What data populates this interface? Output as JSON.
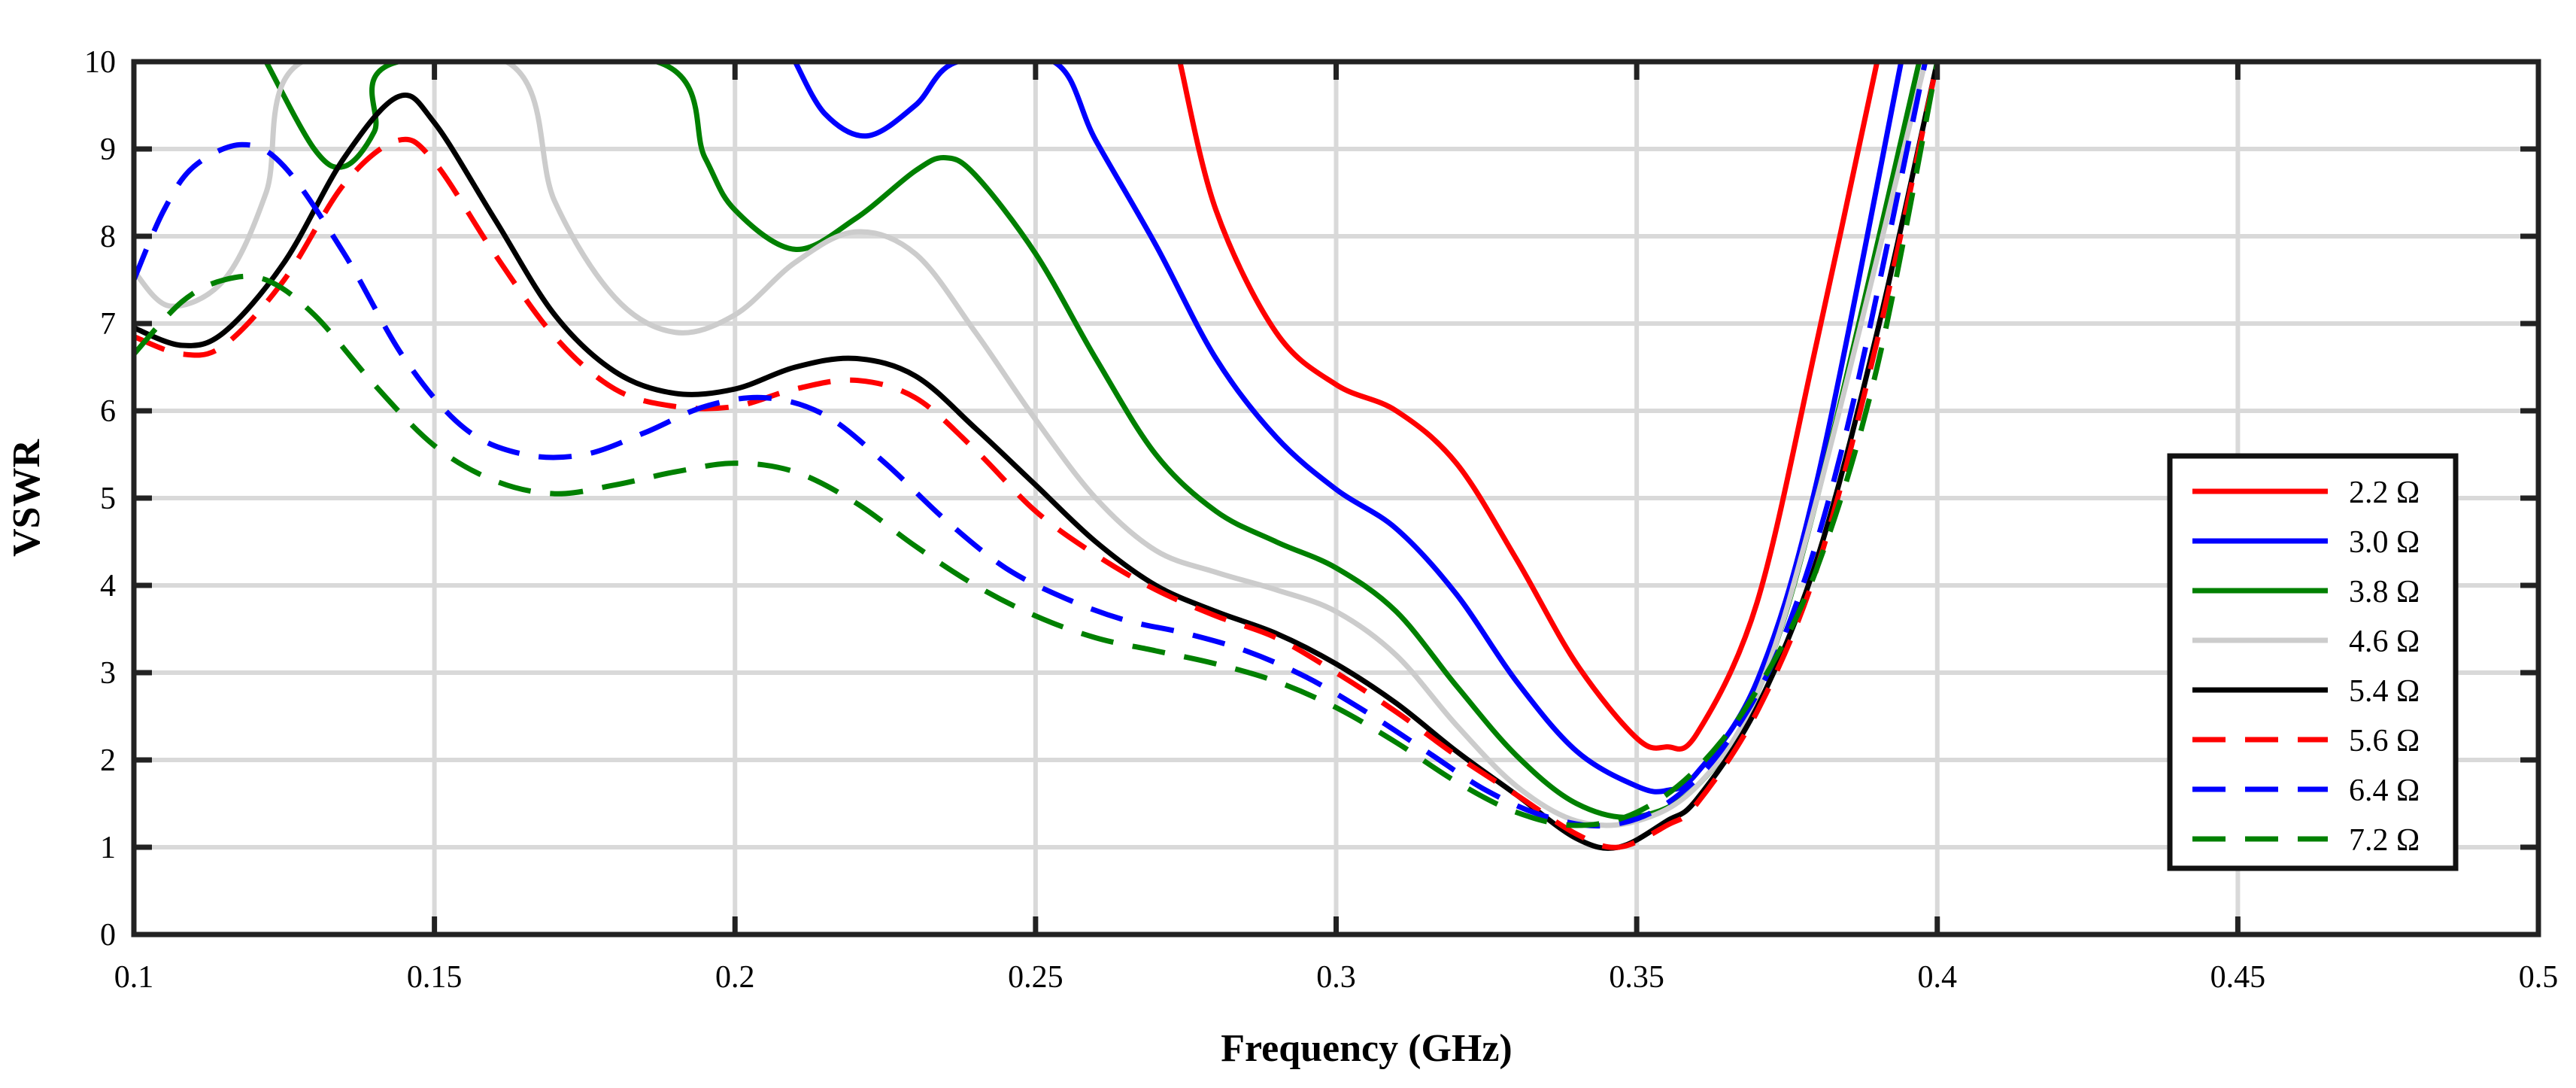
{
  "chart_data": {
    "type": "line",
    "title": "",
    "xlabel": "Frequency (GHz)",
    "ylabel": "VSWR",
    "xlim": [
      0.1,
      0.5
    ],
    "ylim": [
      0,
      10
    ],
    "xticks": [
      0.1,
      0.15,
      0.2,
      0.25,
      0.3,
      0.35,
      0.4,
      0.45,
      0.5
    ],
    "xtick_labels": [
      "0.1",
      "0.15",
      "0.2",
      "0.25",
      "0.3",
      "0.35",
      "0.4",
      "0.45",
      "0.5"
    ],
    "yticks": [
      0,
      1,
      2,
      3,
      4,
      5,
      6,
      7,
      8,
      9,
      10
    ],
    "ytick_labels": [
      "0",
      "1",
      "2",
      "3",
      "4",
      "5",
      "6",
      "7",
      "8",
      "9",
      "10"
    ],
    "grid": true,
    "legend_position": "right",
    "series": [
      {
        "name": "2.2 Ω",
        "color": "#ff0000",
        "dash": "solid",
        "x": [
          0.274,
          0.28,
          0.29,
          0.3,
          0.31,
          0.32,
          0.33,
          0.34,
          0.35,
          0.355,
          0.36,
          0.37,
          0.38,
          0.39
        ],
        "y": [
          10,
          8.3,
          6.9,
          6.3,
          6.0,
          5.4,
          4.3,
          3.1,
          2.25,
          2.15,
          2.3,
          3.8,
          6.8,
          10
        ]
      },
      {
        "name": "3.0 Ω",
        "color": "#0000ff",
        "dash": "solid",
        "x": [
          0.21,
          0.215,
          0.222,
          0.23,
          0.237,
          0.253,
          0.26,
          0.27,
          0.28,
          0.29,
          0.3,
          0.31,
          0.32,
          0.33,
          0.34,
          0.35,
          0.355,
          0.36,
          0.37,
          0.38,
          0.394
        ],
        "y": [
          10,
          9.4,
          9.15,
          9.5,
          10,
          10,
          9.1,
          7.9,
          6.6,
          5.7,
          5.1,
          4.65,
          3.9,
          2.9,
          2.1,
          1.7,
          1.65,
          1.85,
          2.9,
          5.2,
          10
        ]
      },
      {
        "name": "3.8 Ω",
        "color": "#008000",
        "dash": "solid",
        "x": [
          0.122,
          0.13,
          0.135,
          0.14,
          0.144,
          0.187,
          0.195,
          0.2,
          0.21,
          0.22,
          0.23,
          0.235,
          0.24,
          0.25,
          0.26,
          0.27,
          0.28,
          0.29,
          0.3,
          0.31,
          0.32,
          0.33,
          0.34,
          0.35,
          0.36,
          0.37,
          0.38,
          0.397
        ],
        "y": [
          10,
          9.0,
          8.8,
          9.2,
          10,
          10,
          8.9,
          8.3,
          7.85,
          8.2,
          8.75,
          8.9,
          8.7,
          7.8,
          6.6,
          5.5,
          4.85,
          4.5,
          4.2,
          3.7,
          2.85,
          2.05,
          1.5,
          1.35,
          1.7,
          2.75,
          5.0,
          10
        ]
      },
      {
        "name": "4.6 Ω",
        "color": "#cccccc",
        "dash": "solid",
        "x": [
          0.1,
          0.106,
          0.115,
          0.122,
          0.128,
          0.162,
          0.17,
          0.18,
          0.19,
          0.2,
          0.21,
          0.22,
          0.23,
          0.24,
          0.25,
          0.26,
          0.27,
          0.28,
          0.29,
          0.3,
          0.31,
          0.32,
          0.33,
          0.34,
          0.35,
          0.36,
          0.37,
          0.38,
          0.398
        ],
        "y": [
          7.6,
          7.2,
          7.5,
          8.5,
          10,
          10,
          8.4,
          7.3,
          6.9,
          7.1,
          7.7,
          8.05,
          7.8,
          6.9,
          5.9,
          5.0,
          4.4,
          4.15,
          3.95,
          3.7,
          3.2,
          2.4,
          1.7,
          1.3,
          1.3,
          1.7,
          2.75,
          5.0,
          10
        ]
      },
      {
        "name": "5.4 Ω",
        "color": "#000000",
        "dash": "solid",
        "x": [
          0.1,
          0.108,
          0.115,
          0.125,
          0.135,
          0.144,
          0.15,
          0.16,
          0.17,
          0.18,
          0.19,
          0.2,
          0.21,
          0.22,
          0.23,
          0.24,
          0.25,
          0.26,
          0.27,
          0.28,
          0.29,
          0.3,
          0.31,
          0.32,
          0.33,
          0.34,
          0.347,
          0.355,
          0.36,
          0.37,
          0.38,
          0.39,
          0.4
        ],
        "y": [
          6.95,
          6.75,
          6.9,
          7.7,
          8.9,
          9.6,
          9.3,
          8.2,
          7.1,
          6.45,
          6.2,
          6.25,
          6.5,
          6.6,
          6.4,
          5.8,
          5.15,
          4.5,
          4.0,
          3.7,
          3.45,
          3.1,
          2.65,
          2.1,
          1.6,
          1.1,
          1.0,
          1.3,
          1.55,
          2.6,
          4.3,
          6.9,
          10
        ]
      },
      {
        "name": "5.6 Ω",
        "color": "#ff0000",
        "dash": "dashed",
        "x": [
          0.1,
          0.108,
          0.115,
          0.125,
          0.135,
          0.144,
          0.15,
          0.16,
          0.17,
          0.18,
          0.19,
          0.2,
          0.21,
          0.22,
          0.23,
          0.24,
          0.25,
          0.26,
          0.27,
          0.28,
          0.29,
          0.3,
          0.31,
          0.32,
          0.33,
          0.34,
          0.347,
          0.355,
          0.36,
          0.37,
          0.38,
          0.39,
          0.4
        ],
        "y": [
          6.85,
          6.65,
          6.75,
          7.5,
          8.6,
          9.1,
          8.85,
          7.8,
          6.85,
          6.25,
          6.05,
          6.05,
          6.25,
          6.35,
          6.15,
          5.55,
          4.85,
          4.35,
          3.95,
          3.65,
          3.4,
          3.0,
          2.55,
          2.05,
          1.6,
          1.15,
          1.0,
          1.25,
          1.5,
          2.55,
          4.2,
          6.8,
          10
        ]
      },
      {
        "name": "6.4 Ω",
        "color": "#0000ff",
        "dash": "dashed",
        "x": [
          0.1,
          0.105,
          0.11,
          0.118,
          0.125,
          0.135,
          0.145,
          0.155,
          0.165,
          0.175,
          0.185,
          0.195,
          0.205,
          0.215,
          0.225,
          0.235,
          0.245,
          0.255,
          0.265,
          0.275,
          0.285,
          0.295,
          0.305,
          0.315,
          0.325,
          0.335,
          0.345,
          0.355,
          0.365,
          0.375,
          0.385,
          0.398
        ],
        "y": [
          7.5,
          8.3,
          8.8,
          9.05,
          8.8,
          7.8,
          6.6,
          5.8,
          5.5,
          5.5,
          5.75,
          6.05,
          6.15,
          5.95,
          5.4,
          4.75,
          4.2,
          3.85,
          3.6,
          3.45,
          3.25,
          2.95,
          2.55,
          2.1,
          1.65,
          1.35,
          1.25,
          1.5,
          2.2,
          3.5,
          5.8,
          10
        ]
      },
      {
        "name": "7.2 Ω",
        "color": "#008000",
        "dash": "dashed",
        "x": [
          0.1,
          0.108,
          0.115,
          0.122,
          0.13,
          0.14,
          0.15,
          0.16,
          0.17,
          0.18,
          0.19,
          0.2,
          0.21,
          0.22,
          0.23,
          0.24,
          0.25,
          0.26,
          0.27,
          0.28,
          0.29,
          0.3,
          0.31,
          0.32,
          0.33,
          0.34,
          0.35,
          0.36,
          0.37,
          0.38,
          0.39,
          0.4
        ],
        "y": [
          6.65,
          7.25,
          7.5,
          7.5,
          7.1,
          6.3,
          5.6,
          5.2,
          5.05,
          5.15,
          5.3,
          5.4,
          5.3,
          4.95,
          4.45,
          4.0,
          3.65,
          3.4,
          3.25,
          3.1,
          2.9,
          2.6,
          2.2,
          1.75,
          1.4,
          1.25,
          1.4,
          1.9,
          2.8,
          4.2,
          6.5,
          10
        ]
      }
    ]
  }
}
